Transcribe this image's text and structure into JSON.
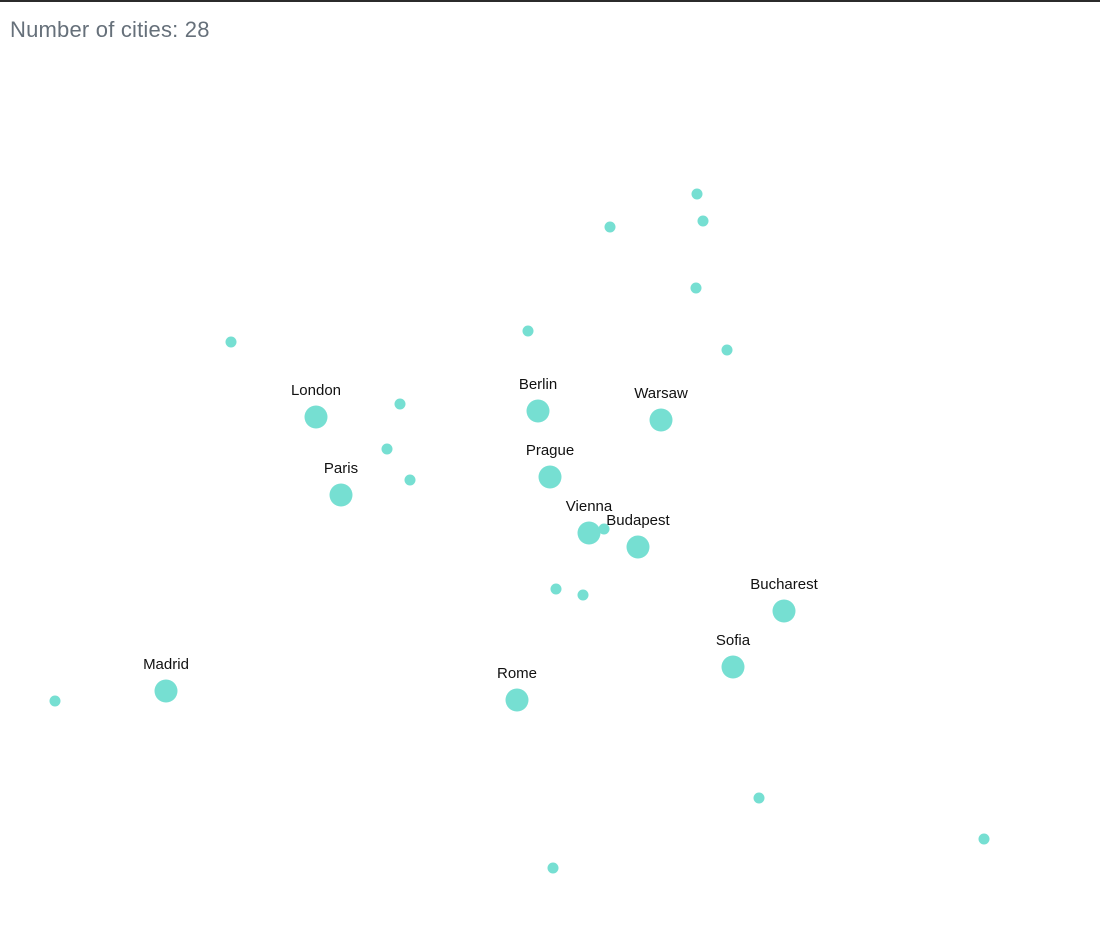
{
  "header": {
    "count_prefix": "Number of cities: ",
    "count": "28"
  },
  "colors": {
    "dot": "#76dfd2",
    "label_text": "#111111",
    "count_text": "#66707a"
  },
  "cities": [
    {
      "name": "London",
      "major": true
    },
    {
      "name": "Paris",
      "major": true
    },
    {
      "name": "Berlin",
      "major": true
    },
    {
      "name": "Prague",
      "major": true
    },
    {
      "name": "Warsaw",
      "major": true
    },
    {
      "name": "Vienna",
      "major": true
    },
    {
      "name": "Budapest",
      "major": true
    },
    {
      "name": "Bucharest",
      "major": true
    },
    {
      "name": "Sofia",
      "major": true
    },
    {
      "name": "Madrid",
      "major": true
    },
    {
      "name": "Rome",
      "major": true
    },
    {
      "name": "",
      "major": false
    },
    {
      "name": "",
      "major": false
    },
    {
      "name": "",
      "major": false
    },
    {
      "name": "",
      "major": false
    },
    {
      "name": "",
      "major": false
    },
    {
      "name": "",
      "major": false
    },
    {
      "name": "",
      "major": false
    },
    {
      "name": "",
      "major": false
    },
    {
      "name": "",
      "major": false
    },
    {
      "name": "",
      "major": false
    },
    {
      "name": "",
      "major": false
    },
    {
      "name": "",
      "major": false
    },
    {
      "name": "",
      "major": false
    },
    {
      "name": "",
      "major": false
    },
    {
      "name": "",
      "major": false
    },
    {
      "name": "",
      "major": false
    },
    {
      "name": "",
      "major": false
    }
  ]
}
